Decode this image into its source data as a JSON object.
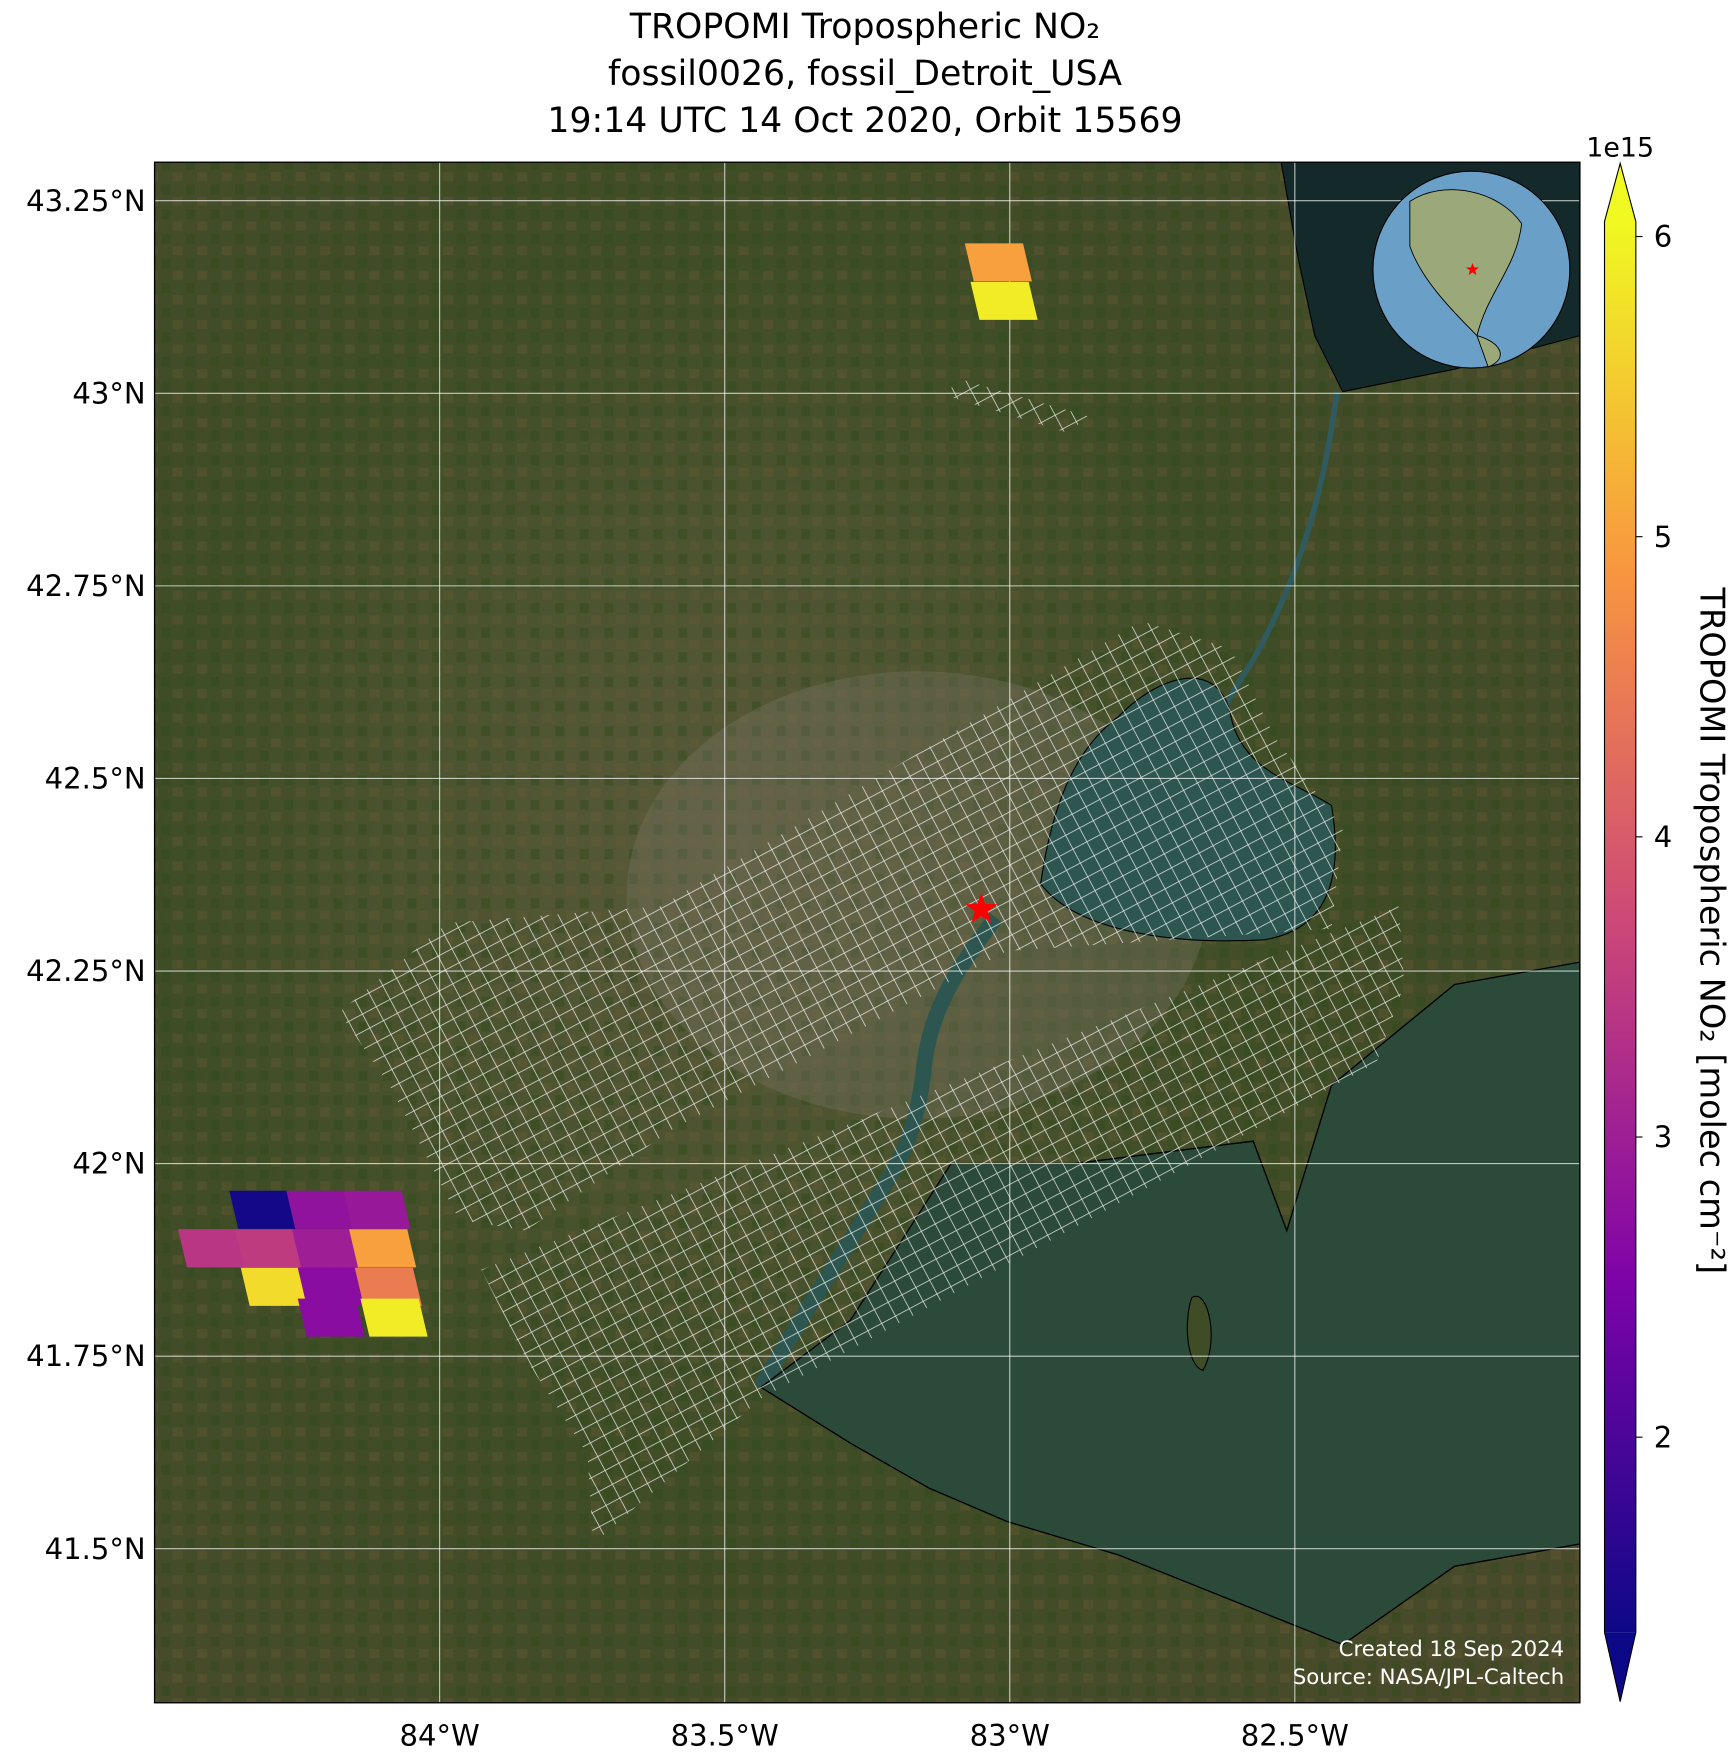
{
  "chart_data": {
    "type": "map",
    "title": [
      "TROPOMI Tropospheric NO₂",
      "fossil0026, fossil_Detroit_USA",
      "19:14 UTC 14 Oct 2020, Orbit 15569"
    ],
    "xlim": [
      -84.5,
      -82.0
    ],
    "ylim": [
      41.3,
      43.3
    ],
    "xticks": [
      {
        "value": -84,
        "label": "84°W"
      },
      {
        "value": -83.5,
        "label": "83.5°W"
      },
      {
        "value": -83,
        "label": "83°W"
      },
      {
        "value": -82.5,
        "label": "82.5°W"
      }
    ],
    "yticks": [
      {
        "value": 43.25,
        "label": "43.25°N"
      },
      {
        "value": 43,
        "label": "43°N"
      },
      {
        "value": 42.75,
        "label": "42.75°N"
      },
      {
        "value": 42.5,
        "label": "42.5°N"
      },
      {
        "value": 42.25,
        "label": "42.25°N"
      },
      {
        "value": 42,
        "label": "42°N"
      },
      {
        "value": 41.75,
        "label": "41.75°N"
      },
      {
        "value": 41.5,
        "label": "41.5°N"
      }
    ],
    "grid": true,
    "colormap": "plasma",
    "clim": [
      1.35,
      6.05
    ],
    "cticks": [
      2,
      3,
      4,
      5,
      6
    ],
    "colorbar_scale": "1e15",
    "colorbar_label": "TROPOMI Tropospheric NO₂ [molec cm⁻²]",
    "site": {
      "lon": -83.05,
      "lat": 42.33,
      "color": "#ff0000"
    },
    "pixels": [
      {
        "lon": -83.02,
        "lat": 43.17,
        "value": 5.0
      },
      {
        "lon": -83.01,
        "lat": 43.12,
        "value": 5.9
      },
      {
        "lon": -84.31,
        "lat": 41.94,
        "value": 1.4
      },
      {
        "lon": -84.21,
        "lat": 41.94,
        "value": 2.8
      },
      {
        "lon": -84.11,
        "lat": 41.94,
        "value": 2.9
      },
      {
        "lon": -84.4,
        "lat": 41.89,
        "value": 3.4
      },
      {
        "lon": -84.3,
        "lat": 41.89,
        "value": 3.5
      },
      {
        "lon": -84.2,
        "lat": 41.89,
        "value": 3.0
      },
      {
        "lon": -84.1,
        "lat": 41.89,
        "value": 5.0
      },
      {
        "lon": -84.29,
        "lat": 41.84,
        "value": 5.7
      },
      {
        "lon": -84.19,
        "lat": 41.84,
        "value": 2.7
      },
      {
        "lon": -84.09,
        "lat": 41.84,
        "value": 4.5
      },
      {
        "lon": -84.19,
        "lat": 41.8,
        "value": 2.7
      },
      {
        "lon": -84.08,
        "lat": 41.8,
        "value": 5.9
      }
    ],
    "footer": [
      "Created 18 Sep 2024",
      "Source: NASA/JPL-Caltech"
    ]
  }
}
